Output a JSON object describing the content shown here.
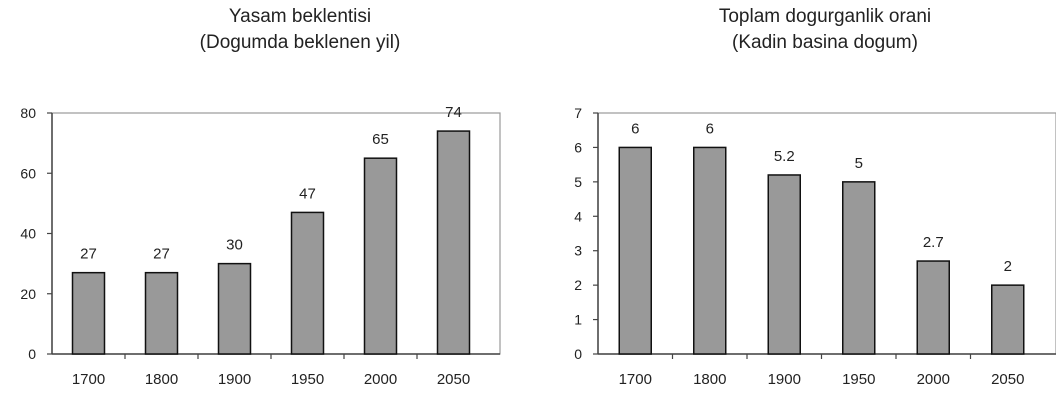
{
  "chart_data": [
    {
      "type": "bar",
      "title": "Yasam beklentisi",
      "subtitle": "(Dogumda beklenen yil)",
      "categories": [
        "1700",
        "1800",
        "1900",
        "1950",
        "2000",
        "2050"
      ],
      "values": [
        27,
        27,
        30,
        47,
        65,
        74
      ],
      "data_labels": [
        "27",
        "27",
        "30",
        "47",
        "65",
        "74"
      ],
      "ylim": [
        0,
        80
      ],
      "yticks": [
        "0",
        "20",
        "40",
        "60",
        "80"
      ],
      "xlabel": "",
      "ylabel": "",
      "grid": false,
      "bar_color": "#999999"
    },
    {
      "type": "bar",
      "title": "Toplam dogurganlik orani",
      "subtitle": "(Kadin basina dogum)",
      "categories": [
        "1700",
        "1800",
        "1900",
        "1950",
        "2000",
        "2050"
      ],
      "values": [
        6,
        6,
        5.2,
        5,
        2.7,
        2
      ],
      "data_labels": [
        "6",
        "6",
        "5.2",
        "5",
        "2.7",
        "2"
      ],
      "ylim": [
        0,
        7
      ],
      "yticks": [
        "0",
        "1",
        "2",
        "3",
        "4",
        "5",
        "6",
        "7"
      ],
      "xlabel": "",
      "ylabel": "",
      "grid": false,
      "bar_color": "#999999"
    }
  ]
}
